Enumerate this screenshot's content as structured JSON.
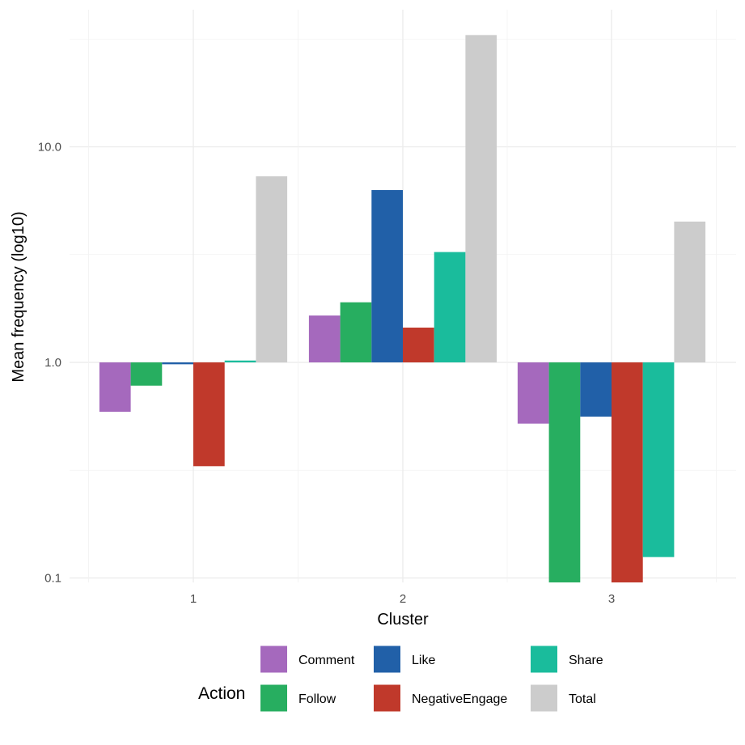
{
  "chart_data": {
    "type": "bar",
    "title": "",
    "xlabel": "Cluster",
    "ylabel": "Mean frequency (log10)",
    "y_scale": "log10",
    "ylim": [
      0.092,
      37
    ],
    "baseline": 1,
    "grid": true,
    "categories": [
      "1",
      "2",
      "3"
    ],
    "y_ticks": [
      0.1,
      1.0,
      10.0
    ],
    "y_tick_labels": [
      "0.1",
      "1.0",
      "10.0"
    ],
    "legend": {
      "title": "Action",
      "position": "bottom"
    },
    "series": [
      {
        "name": "Comment",
        "color": "#A569BD",
        "values": [
          0.59,
          1.65,
          0.52
        ]
      },
      {
        "name": "Follow",
        "color": "#27AE60",
        "values": [
          0.78,
          1.9,
          0.095
        ]
      },
      {
        "name": "Like",
        "color": "#2160A8",
        "values": [
          0.98,
          6.3,
          0.56
        ]
      },
      {
        "name": "NegativeEngage",
        "color": "#C0392B",
        "values": [
          0.33,
          1.45,
          0.095
        ]
      },
      {
        "name": "Share",
        "color": "#1ABC9C",
        "values": [
          1.02,
          3.25,
          0.125
        ]
      },
      {
        "name": "Total",
        "color": "#CCCCCC",
        "values": [
          7.3,
          33.0,
          4.5
        ]
      }
    ]
  }
}
